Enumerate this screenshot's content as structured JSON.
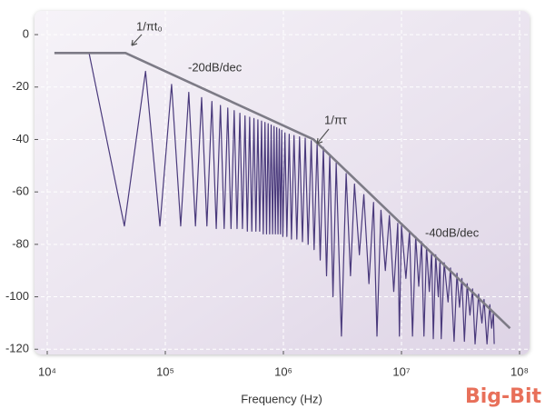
{
  "chart_data": {
    "type": "line",
    "xscale": "log",
    "xlabel": "Frequency (Hz)",
    "xlim": [
      10000,
      100000000
    ],
    "ylim": [
      -122,
      8
    ],
    "xticks": [
      {
        "value": 10000,
        "label": "10⁴"
      },
      {
        "value": 100000,
        "label": "10⁵"
      },
      {
        "value": 1000000,
        "label": "10⁶"
      },
      {
        "value": 10000000,
        "label": "10⁷"
      },
      {
        "value": 100000000,
        "label": "10⁸"
      }
    ],
    "yticks": [
      0,
      -20,
      -40,
      -60,
      -80,
      -100,
      -120
    ],
    "grid": true,
    "annotations": [
      "1/πt₀",
      "-20dB/dec",
      "1/πτ",
      "-40dB/dec"
    ],
    "watermark": "Big-Bit",
    "series": [
      {
        "color": "#4a3a7c",
        "width": 1.2,
        "x": [
          22600,
          45000,
          68000,
          90000,
          113000,
          135000,
          158000,
          180000,
          203000,
          225000,
          248000,
          270000,
          293000,
          315000,
          338000,
          360000,
          383000,
          405000,
          428000,
          450000,
          473000,
          495000,
          518000,
          540000,
          563000,
          585000,
          608000,
          630000,
          653000,
          675000,
          698000,
          720000,
          743000,
          765000,
          788000,
          810000,
          833000,
          855000,
          878000,
          900000,
          923000,
          945000,
          968000,
          990000,
          1030000,
          1070000,
          1120000,
          1170000,
          1230000,
          1300000,
          1370000,
          1450000,
          1530000,
          1620000,
          1720000,
          1820000,
          1930000,
          2050000,
          2180000,
          2320000,
          2470000,
          2630000,
          2800000,
          3100000,
          3400000,
          3700000,
          4000000,
          4400000,
          4800000,
          5300000,
          5800000,
          6200000,
          6700000,
          7300000,
          7900000,
          8600000,
          9300000,
          9600000,
          10000000,
          10900000,
          11700000,
          12400000,
          13200000,
          14000000,
          14800000,
          15500000,
          16300000,
          17200000,
          18000000,
          18600000,
          19500000,
          20500000,
          21200000,
          21700000,
          23000000,
          24800000,
          26000000,
          27900000,
          29500000,
          31000000,
          32500000,
          34100000,
          36000000,
          38000000,
          40000000,
          42000000,
          45000000,
          48000000,
          50000000,
          53000000,
          56000000,
          58000000,
          60000000,
          61000000
        ],
        "values": [
          -7,
          -73,
          -14,
          -73,
          -19,
          -73,
          -22,
          -73,
          -24,
          -73,
          -25.5,
          -74,
          -27,
          -74,
          -28,
          -74,
          -29,
          -74,
          -30,
          -74,
          -31,
          -75,
          -31.5,
          -75,
          -32,
          -75,
          -32.5,
          -75,
          -33,
          -76,
          -33.5,
          -76,
          -34,
          -76,
          -34.5,
          -76,
          -35,
          -76,
          -35.5,
          -76,
          -36,
          -76,
          -36.5,
          -77,
          -37.5,
          -77,
          -38,
          -78,
          -38.5,
          -78,
          -39,
          -79,
          -39.5,
          -80,
          -40.5,
          -82,
          -41.5,
          -86,
          -43,
          -92,
          -46,
          -100,
          -49,
          -115,
          -53,
          -92,
          -57,
          -84,
          -61,
          -95,
          -64,
          -115,
          -67,
          -90,
          -69,
          -98,
          -72,
          -115,
          -73,
          -93,
          -75,
          -115,
          -77,
          -96,
          -79,
          -115,
          -81,
          -98,
          -83,
          -116,
          -84,
          -100,
          -86,
          -116,
          -87,
          -102,
          -89,
          -117,
          -91,
          -104,
          -93,
          -117,
          -95,
          -107,
          -97,
          -118,
          -99,
          -110,
          -101,
          -118,
          -103,
          -112,
          -106,
          -118
        ]
      },
      {
        "color": "#7d7b86",
        "width": 2.6,
        "x": [
          11500,
          46000,
          1800000,
          83000000
        ],
        "values": [
          -7,
          -7,
          -40,
          -112
        ]
      }
    ]
  }
}
